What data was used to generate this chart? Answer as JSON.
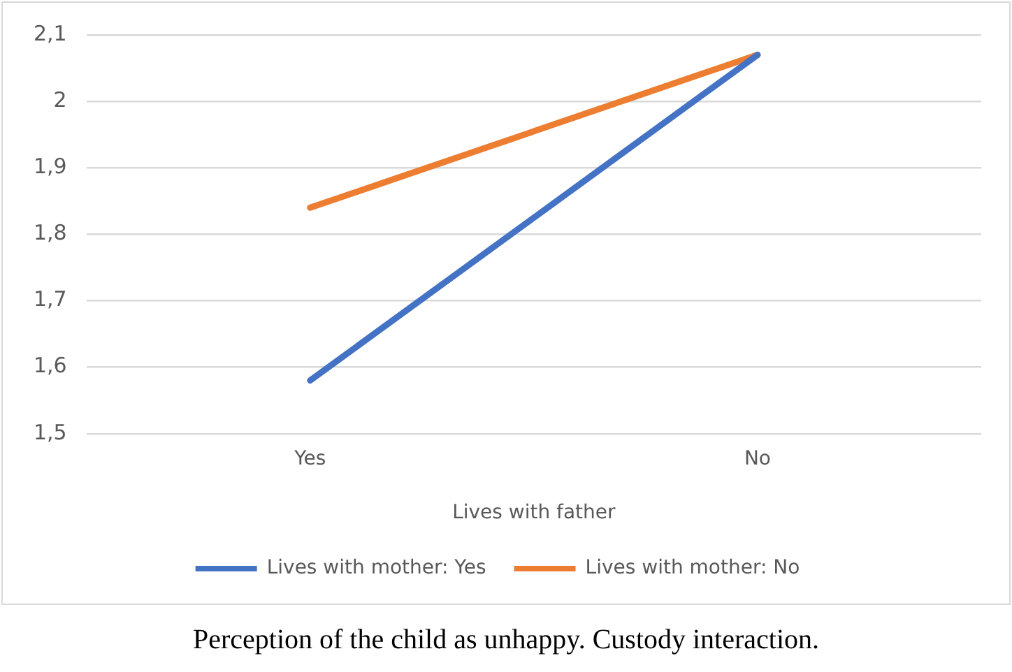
{
  "chart_data": {
    "type": "line",
    "xlabel": "Lives with father",
    "categories": [
      "Yes",
      "No"
    ],
    "series": [
      {
        "name": "Lives with mother: Yes",
        "color": "#4472c4",
        "values": [
          1.58,
          2.07
        ]
      },
      {
        "name": "Lives with mother: No",
        "color": "#ed7d31",
        "values": [
          1.84,
          2.07
        ]
      }
    ],
    "ylim": [
      1.5,
      2.1
    ],
    "yticks": [
      {
        "value": 1.5,
        "label": "1,5"
      },
      {
        "value": 1.6,
        "label": "1,6"
      },
      {
        "value": 1.7,
        "label": "1,7"
      },
      {
        "value": 1.8,
        "label": "1,8"
      },
      {
        "value": 1.9,
        "label": "1,9"
      },
      2,
      {
        "value": 2.1,
        "label": "2,1"
      }
    ],
    "grid": "y",
    "legend": "bottom",
    "marker": "none",
    "line_style": "solid",
    "annotations": [
      "Perception of the child as unhappy. Custody interaction."
    ]
  }
}
